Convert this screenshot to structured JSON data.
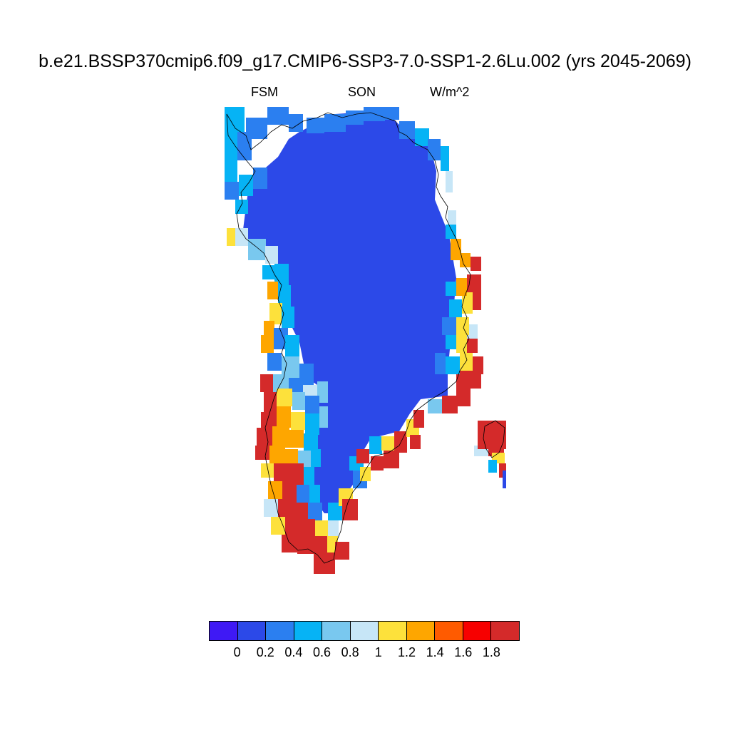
{
  "header": {
    "title": "b.e21.BSSP370cmip6.f09_g17.CMIP6-SSP3-7.0-SSP1-2.6Lu.002 (yrs 2045-2069)",
    "left": "FSM",
    "center": "SON",
    "right": "W/m^2"
  },
  "colorbar": {
    "colors": [
      "#3f19f5",
      "#2c49e8",
      "#2b7ff0",
      "#06b3f5",
      "#79c8ef",
      "#c7e6f7",
      "#fde13b",
      "#fea600",
      "#ff5b00",
      "#f70000",
      "#d42a2a"
    ],
    "labels": [
      "0",
      "0.2",
      "0.4",
      "0.6",
      "0.8",
      "1",
      "1.2",
      "1.4",
      "1.6",
      "1.8"
    ]
  },
  "map": {
    "region": "Greenland",
    "palette": {
      "interior": "#2c49e8",
      "blue": "#2b7ff0",
      "cyan": "#06b3f5",
      "lightblue": "#79c8ef",
      "paleblue": "#c7e6f7",
      "yellow": "#fde13b",
      "orange": "#fea600",
      "red": "#d42a2a"
    }
  }
}
